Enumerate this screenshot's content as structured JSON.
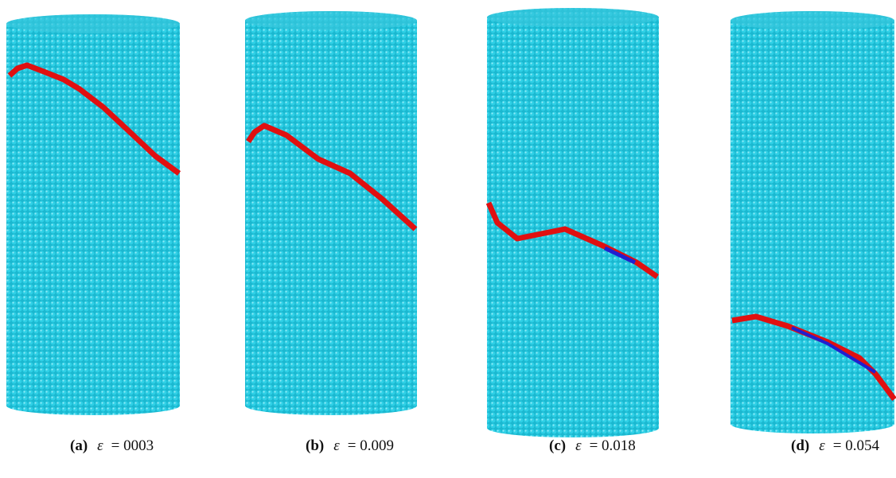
{
  "figure": {
    "panels": [
      {
        "label": "(a)",
        "symbol": "ε",
        "value": "= 0003"
      },
      {
        "label": "(b)",
        "symbol": "ε",
        "value": "= 0.009"
      },
      {
        "label": "(c)",
        "symbol": "ε",
        "value": "= 0.018"
      },
      {
        "label": "(d)",
        "symbol": "ε",
        "value": "= 0.054"
      }
    ]
  }
}
